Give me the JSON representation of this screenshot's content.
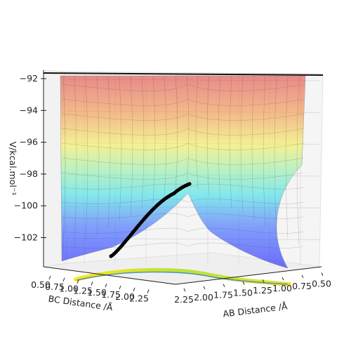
{
  "chart_data": {
    "type": "surface3d",
    "title": "",
    "zlabel": "V/kcal.mol⁻¹",
    "xlabel": "AB Distance /Å",
    "ylabel": "BC Distance /Å",
    "z_ticks": [
      "−92",
      "−94",
      "−96",
      "−98",
      "−100",
      "−102"
    ],
    "x_ticks": [
      "2.25",
      "2.00",
      "1.75",
      "1.50",
      "1.25",
      "1.00",
      "0.75",
      "0.50"
    ],
    "y_ticks": [
      "0.50",
      "0.75",
      "1.00",
      "1.25",
      "1.50",
      "1.75",
      "2.00",
      "2.25"
    ],
    "x_range": [
      0.5,
      2.3
    ],
    "y_range": [
      0.5,
      2.3
    ],
    "z_range": [
      -104,
      -92
    ],
    "colormap": "jet",
    "trajectory_color": "#000000",
    "grid": true
  }
}
